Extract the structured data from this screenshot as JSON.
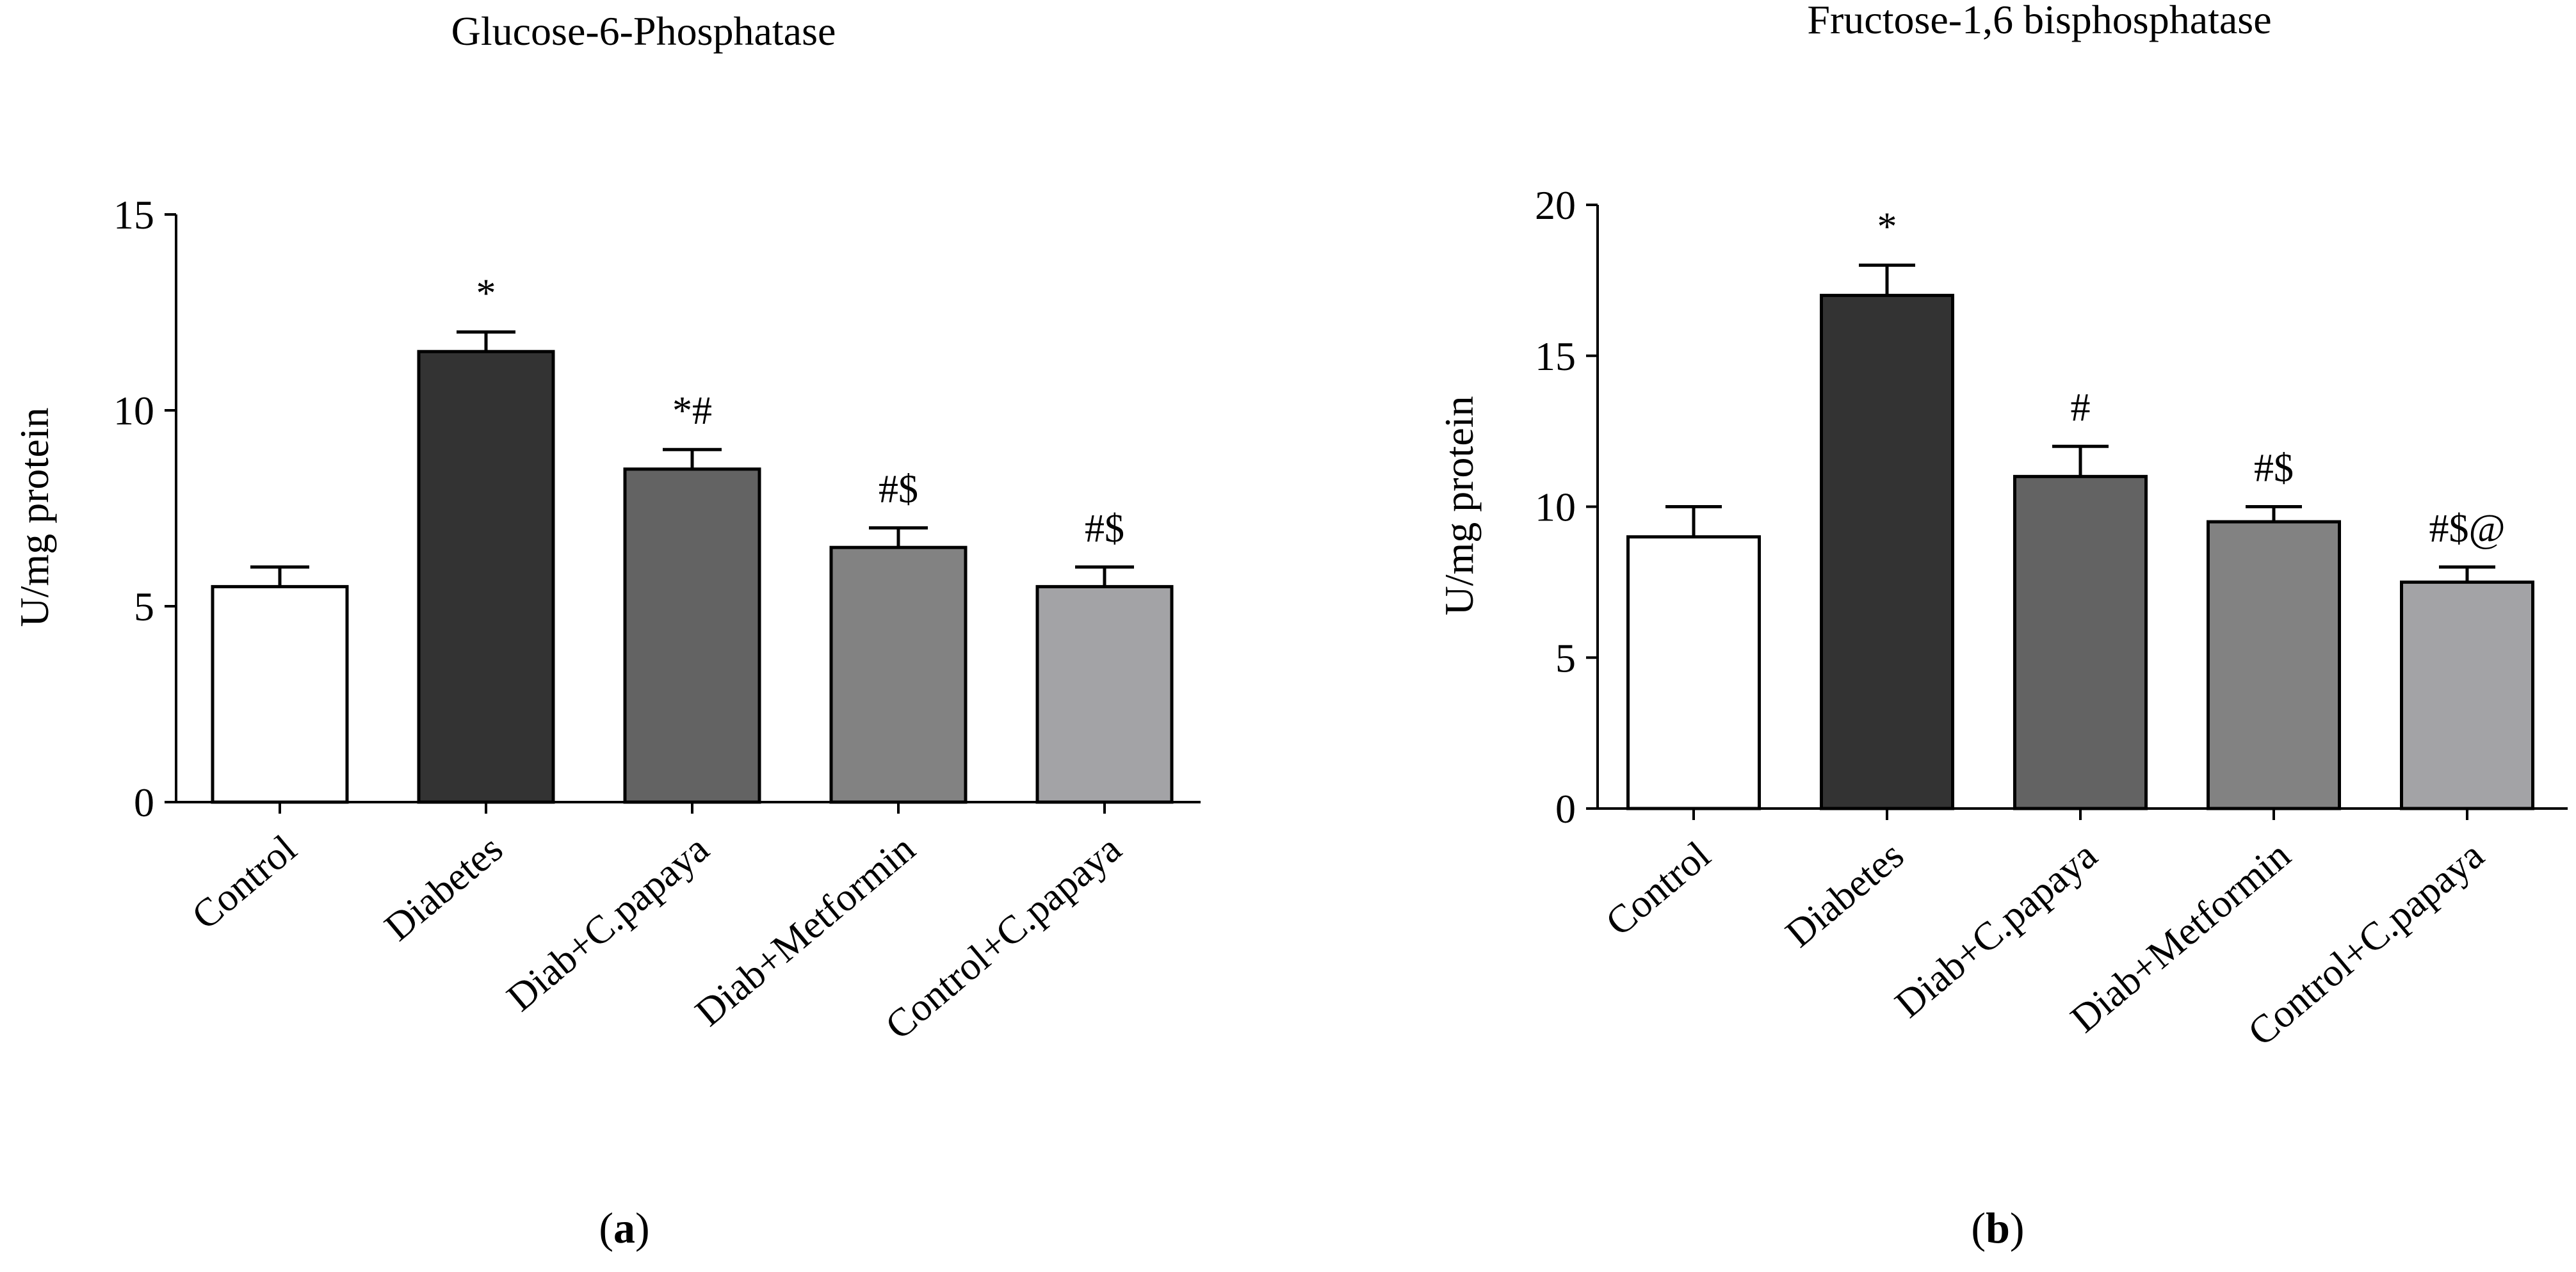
{
  "chart_data": [
    {
      "type": "bar",
      "panel_label_open": "(",
      "panel_label_letter": "a",
      "panel_label_close": ")",
      "title": "Glucose-6-Phosphatase",
      "xlabel": "",
      "ylabel": "U/mg protein",
      "ylim": [
        0,
        15
      ],
      "yticks": [
        0,
        5,
        10,
        15
      ],
      "categories": [
        "Control",
        "Diabetes",
        "Diab+C.papaya",
        "Diab+Metformin",
        "Control+C.papaya"
      ],
      "values": [
        5.5,
        11.5,
        8.5,
        6.5,
        5.5
      ],
      "errors": [
        0.5,
        0.5,
        0.5,
        0.5,
        0.5
      ],
      "annotations": [
        "",
        "*",
        "*#",
        "#$",
        "#$"
      ],
      "colors": [
        "#ffffff",
        "#333333",
        "#636363",
        "#828282",
        "#a3a3a6"
      ]
    },
    {
      "type": "bar",
      "panel_label_open": "(",
      "panel_label_letter": "b",
      "panel_label_close": ")",
      "title": "Fructose-1,6 bisphosphatase",
      "xlabel": "",
      "ylabel": "U/mg protein",
      "ylim": [
        0,
        20
      ],
      "yticks": [
        0,
        5,
        10,
        15,
        20
      ],
      "categories": [
        "Control",
        "Diabetes",
        "Diab+C.papaya",
        "Diab+Metformin",
        "Control+C.papaya"
      ],
      "values": [
        9,
        17,
        11,
        9.5,
        7.5
      ],
      "errors": [
        1,
        1,
        1,
        0.5,
        0.5
      ],
      "annotations": [
        "",
        "*",
        "#",
        "#$",
        "#$@"
      ],
      "colors": [
        "#ffffff",
        "#333333",
        "#636363",
        "#828282",
        "#a3a3a6"
      ]
    }
  ]
}
